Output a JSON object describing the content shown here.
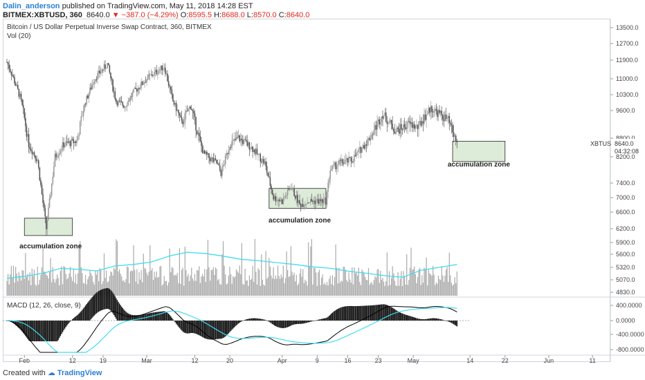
{
  "header": {
    "publisher": "Dalin_anderson",
    "published_text": "published on TradingView.com, May 11, 2018 14:28 EST",
    "symbol": "BITMEX:XBTUSD, 360",
    "last": "8640.0",
    "change": "−387.0 (−4.29%)",
    "o_label": "O:",
    "o_val": "8595.5",
    "h_label": "H:",
    "h_val": "8688.0",
    "l_label": "L:",
    "l_val": "8570.0",
    "c_label": "C:",
    "c_val": "8640.0"
  },
  "chart_title": "Bitcoin / US Dollar Perpetual Inverse Swap Contract, 360, BITMEX",
  "vol_label": "Vol (20)",
  "macd_label": "MACD (12, 26, close, 9)",
  "price_tag": {
    "symbol": "XBTUSD",
    "value": "8640.0",
    "countdown": "04:32:08"
  },
  "footer": {
    "created": "Created with",
    "brand": "TradingView"
  },
  "colors": {
    "accent": "#2a7fd4",
    "down": "#e0281e",
    "zone_fill": "#d5e6cf",
    "vol_ma": "#3fdcf0",
    "macd_line": "#000000",
    "signal_line": "#3fdcf0"
  },
  "chart_data": {
    "type": "candlestick",
    "x_ticks": [
      "Feb",
      "12",
      "19",
      "Mar",
      "12",
      "20",
      "Apr",
      "9",
      "16",
      "23",
      "May",
      "14",
      "22",
      "Jun",
      "11"
    ],
    "price_axis": {
      "scale": "log",
      "ticks": [
        "13500.0",
        "12700.0",
        "11900.0",
        "11000.0",
        "10300.0",
        "9600.0",
        "8800.0",
        "8200.0",
        "7400.0",
        "7000.0",
        "6600.0",
        "6200.0",
        "5900.0",
        "5600.0",
        "5320.0",
        "5070.0",
        "4830.0"
      ]
    },
    "macd_axis": {
      "ticks": [
        "400.0000",
        "0.0000",
        "-400.0000",
        "-800.0000"
      ]
    },
    "price_path": [
      [
        "Jan 28",
        11800
      ],
      [
        "Jan 29",
        11300
      ],
      [
        "Jan 31",
        10200
      ],
      [
        "Feb 2",
        8600
      ],
      [
        "Feb 4",
        8100
      ],
      [
        "Feb 6",
        6200
      ],
      [
        "Feb 8",
        8200
      ],
      [
        "Feb 10",
        8600
      ],
      [
        "Feb 13",
        8700
      ],
      [
        "Feb 15",
        10000
      ],
      [
        "Feb 17",
        11000
      ],
      [
        "Feb 20",
        11700
      ],
      [
        "Feb 22",
        10000
      ],
      [
        "Feb 24",
        9800
      ],
      [
        "Feb 26",
        10400
      ],
      [
        "Mar 1",
        11000
      ],
      [
        "Mar 5",
        11600
      ],
      [
        "Mar 7",
        10000
      ],
      [
        "Mar 9",
        9200
      ],
      [
        "Mar 11",
        9800
      ],
      [
        "Mar 14",
        8300
      ],
      [
        "Mar 17",
        8000
      ],
      [
        "Mar 18",
        7700
      ],
      [
        "Mar 20",
        8600
      ],
      [
        "Mar 22",
        8800
      ],
      [
        "Mar 25",
        8500
      ],
      [
        "Mar 28",
        8000
      ],
      [
        "Mar 30",
        7000
      ],
      [
        "Apr 1",
        6900
      ],
      [
        "Apr 3",
        7300
      ],
      [
        "Apr 5",
        6800
      ],
      [
        "Apr 7",
        6900
      ],
      [
        "Apr 11",
        6900
      ],
      [
        "Apr 12",
        7800
      ],
      [
        "Apr 14",
        8000
      ],
      [
        "Apr 17",
        8100
      ],
      [
        "Apr 21",
        8800
      ],
      [
        "Apr 24",
        9500
      ],
      [
        "Apr 27",
        9000
      ],
      [
        "Apr 30",
        9200
      ],
      [
        "May 2",
        9100
      ],
      [
        "May 5",
        9700
      ],
      [
        "May 7",
        9500
      ],
      [
        "May 9",
        9300
      ],
      [
        "May 11",
        8640
      ]
    ],
    "volume_sma_path": [
      5100,
      5140,
      5200,
      5300,
      5280,
      5250,
      5350,
      5380,
      5430,
      5560,
      5650,
      5620,
      5560,
      5490,
      5460,
      5420,
      5380,
      5330,
      5300,
      5240,
      5200,
      5150,
      5120,
      5260,
      5320,
      5380
    ]
  },
  "annotations": [
    {
      "text": "accumulation zone",
      "anchor": "Feb 6"
    },
    {
      "text": "accumulation zone",
      "anchor": "Apr 5"
    },
    {
      "text": "accumulation zone",
      "anchor": "May 13"
    }
  ]
}
